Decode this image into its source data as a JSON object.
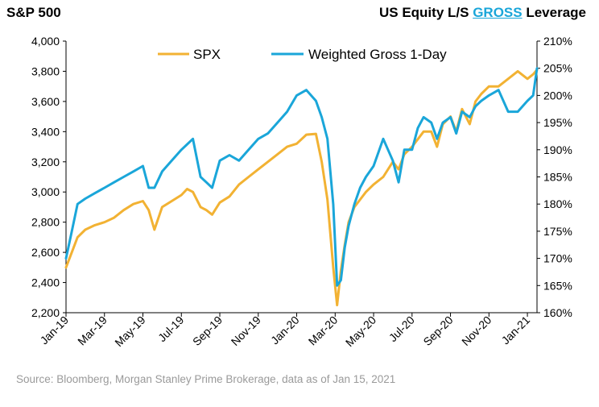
{
  "header": {
    "left_title": "S&P 500",
    "right_title_prefix": "US Equity L/S",
    "right_title_highlight": "GROSS",
    "right_title_suffix": "Leverage"
  },
  "source": "Source: Bloomberg, Morgan Stanley Prime Brokerage, data as of Jan 15, 2021",
  "colors": {
    "spx": "#f2b233",
    "gross": "#1aa6d9",
    "axis": "#000000"
  },
  "chart_data": {
    "type": "line",
    "title": "S&P 500 vs US Equity L/S GROSS Leverage",
    "categories": [
      "Jan-19",
      "Mar-19",
      "May-19",
      "Jul-19",
      "Sep-19",
      "Nov-19",
      "Jan-20",
      "Mar-20",
      "May-20",
      "Jul-20",
      "Sep-20",
      "Nov-20",
      "Jan-21"
    ],
    "y_left": {
      "ticks": [
        "2,200",
        "2,400",
        "2,600",
        "2,800",
        "3,000",
        "3,200",
        "3,400",
        "3,600",
        "3,800",
        "4,000"
      ],
      "ylim": [
        2200,
        4000
      ]
    },
    "y_right": {
      "ticks": [
        "160%",
        "165%",
        "170%",
        "175%",
        "180%",
        "185%",
        "190%",
        "195%",
        "200%",
        "205%",
        "210%"
      ],
      "ylim": [
        160,
        210
      ]
    },
    "legend": [
      "SPX",
      "Weighted Gross 1-Day"
    ],
    "x_range": [
      0,
      24.5
    ],
    "series": [
      {
        "name": "SPX",
        "axis": "left",
        "x": [
          0,
          0.3,
          0.6,
          1,
          1.5,
          2,
          2.5,
          3,
          3.5,
          4,
          4.3,
          4.6,
          5,
          5.5,
          6,
          6.3,
          6.6,
          7,
          7.3,
          7.6,
          8,
          8.5,
          9,
          9.5,
          10,
          10.5,
          11,
          11.5,
          12,
          12.5,
          13,
          13.3,
          13.6,
          13.9,
          14.1,
          14.3,
          14.5,
          14.7,
          15,
          15.3,
          15.6,
          16,
          16.5,
          17,
          17.3,
          17.6,
          18,
          18.3,
          18.6,
          19,
          19.3,
          19.6,
          20,
          20.3,
          20.6,
          21,
          21.3,
          21.6,
          22,
          22.5,
          23,
          23.5,
          24,
          24.3,
          24.5
        ],
        "values": [
          2500,
          2600,
          2700,
          2750,
          2780,
          2800,
          2830,
          2880,
          2920,
          2940,
          2880,
          2750,
          2900,
          2940,
          2980,
          3020,
          3000,
          2900,
          2880,
          2850,
          2930,
          2970,
          3050,
          3100,
          3150,
          3200,
          3250,
          3300,
          3320,
          3380,
          3385,
          3200,
          2950,
          2500,
          2250,
          2480,
          2650,
          2800,
          2900,
          2950,
          3000,
          3050,
          3100,
          3200,
          3150,
          3250,
          3300,
          3350,
          3400,
          3400,
          3300,
          3450,
          3500,
          3400,
          3550,
          3450,
          3600,
          3650,
          3700,
          3700,
          3750,
          3800,
          3750,
          3780,
          3810
        ]
      },
      {
        "name": "Weighted Gross 1-Day",
        "axis": "right",
        "x": [
          0,
          0.3,
          0.6,
          1,
          1.5,
          2,
          2.5,
          3,
          3.5,
          4,
          4.3,
          4.6,
          5,
          5.5,
          6,
          6.3,
          6.6,
          7,
          7.3,
          7.6,
          8,
          8.5,
          9,
          9.5,
          10,
          10.5,
          11,
          11.5,
          12,
          12.5,
          13,
          13.3,
          13.6,
          13.9,
          14.1,
          14.3,
          14.5,
          14.7,
          15,
          15.3,
          15.6,
          16,
          16.5,
          17,
          17.3,
          17.6,
          18,
          18.3,
          18.6,
          19,
          19.3,
          19.6,
          20,
          20.3,
          20.6,
          21,
          21.3,
          21.6,
          22,
          22.5,
          23,
          23.5,
          24,
          24.3,
          24.5
        ],
        "values": [
          170,
          175,
          180,
          181,
          182,
          183,
          184,
          185,
          186,
          187,
          183,
          183,
          186,
          188,
          190,
          191,
          192,
          185,
          184,
          183,
          188,
          189,
          188,
          190,
          192,
          193,
          195,
          197,
          200,
          201,
          199,
          196,
          192,
          180,
          165,
          166,
          172,
          176,
          180,
          183,
          185,
          187,
          192,
          188,
          184,
          190,
          190,
          194,
          196,
          195,
          192,
          195,
          196,
          193,
          197,
          196,
          198,
          199,
          200,
          201,
          197,
          197,
          199,
          200,
          205
        ]
      }
    ]
  }
}
